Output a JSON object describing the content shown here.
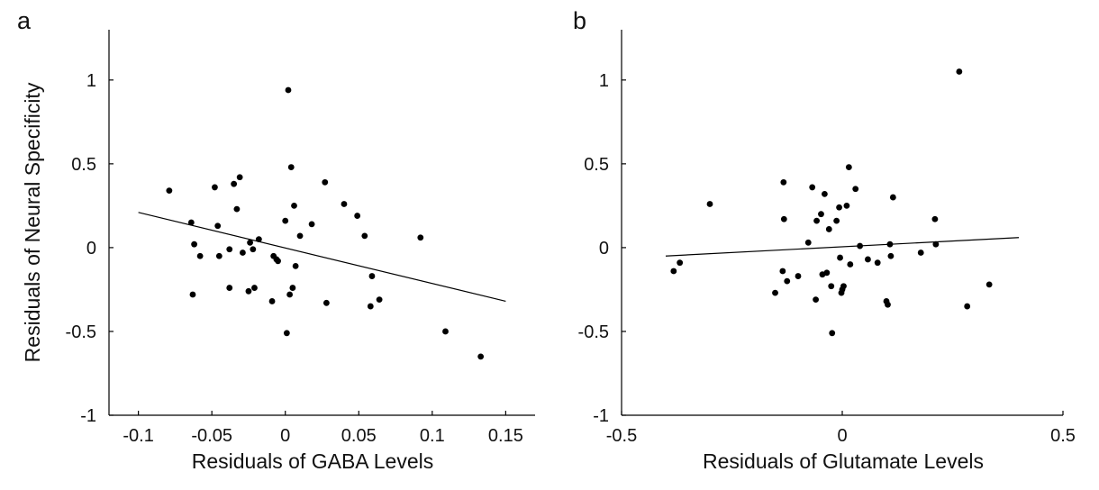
{
  "shared": {
    "ylabel": "Residuals of Neural Specificity",
    "point_color": "#000000",
    "line_color": "#000000"
  },
  "chart_data": [
    {
      "type": "scatter",
      "panel": "a",
      "xlabel": "Residuals of GABA Levels",
      "ylabel": "Residuals of Neural Specificity",
      "xlim": [
        -0.12,
        0.17
      ],
      "ylim": [
        -1,
        1.3
      ],
      "xticks": [
        -0.1,
        -0.05,
        0,
        0.05,
        0.1,
        0.15
      ],
      "xtick_labels": [
        "-0.1",
        "-0.05",
        "0",
        "0.05",
        "0.1",
        "0.15"
      ],
      "yticks": [
        -1,
        -0.5,
        0,
        0.5,
        1
      ],
      "ytick_labels": [
        "-1",
        "-0.5",
        "0",
        "0.5",
        "1"
      ],
      "fit_line": {
        "x": [
          -0.1,
          0.15
        ],
        "y": [
          0.21,
          -0.32
        ]
      },
      "points": [
        [
          -0.079,
          0.34
        ],
        [
          -0.064,
          0.15
        ],
        [
          -0.063,
          -0.28
        ],
        [
          -0.062,
          0.02
        ],
        [
          -0.058,
          -0.05
        ],
        [
          -0.048,
          0.36
        ],
        [
          -0.046,
          0.13
        ],
        [
          -0.045,
          -0.05
        ],
        [
          -0.038,
          -0.24
        ],
        [
          -0.038,
          -0.01
        ],
        [
          -0.035,
          0.38
        ],
        [
          -0.033,
          0.23
        ],
        [
          -0.031,
          0.42
        ],
        [
          -0.029,
          -0.03
        ],
        [
          -0.025,
          -0.26
        ],
        [
          -0.024,
          0.03
        ],
        [
          -0.022,
          -0.01
        ],
        [
          -0.021,
          -0.24
        ],
        [
          -0.018,
          0.05
        ],
        [
          -0.009,
          -0.32
        ],
        [
          -0.008,
          -0.05
        ],
        [
          -0.006,
          -0.07
        ],
        [
          -0.005,
          -0.08
        ],
        [
          0.0,
          0.16
        ],
        [
          0.001,
          -0.51
        ],
        [
          0.002,
          0.94
        ],
        [
          0.003,
          -0.28
        ],
        [
          0.004,
          0.48
        ],
        [
          0.005,
          -0.24
        ],
        [
          0.006,
          0.25
        ],
        [
          0.007,
          -0.11
        ],
        [
          0.01,
          0.07
        ],
        [
          0.018,
          0.14
        ],
        [
          0.027,
          0.39
        ],
        [
          0.028,
          -0.33
        ],
        [
          0.04,
          0.26
        ],
        [
          0.049,
          0.19
        ],
        [
          0.054,
          0.07
        ],
        [
          0.058,
          -0.35
        ],
        [
          0.059,
          -0.17
        ],
        [
          0.064,
          -0.31
        ],
        [
          0.092,
          0.06
        ],
        [
          0.109,
          -0.5
        ],
        [
          0.133,
          -0.65
        ]
      ]
    },
    {
      "type": "scatter",
      "panel": "b",
      "xlabel": "Residuals of Glutamate Levels",
      "ylabel": "",
      "xlim": [
        -0.5,
        0.5
      ],
      "ylim": [
        -1,
        1.3
      ],
      "xticks": [
        -0.5,
        0,
        0.5
      ],
      "xtick_labels": [
        "-0.5",
        "0",
        "0.5"
      ],
      "yticks": [
        -1,
        -0.5,
        0,
        0.5,
        1
      ],
      "ytick_labels": [
        "-1",
        "-0.5",
        "0",
        "0.5",
        "1"
      ],
      "fit_line": {
        "x": [
          -0.4,
          0.4
        ],
        "y": [
          -0.05,
          0.06
        ]
      },
      "points": [
        [
          -0.382,
          -0.14
        ],
        [
          -0.368,
          -0.09
        ],
        [
          -0.3,
          0.26
        ],
        [
          -0.152,
          -0.27
        ],
        [
          -0.135,
          -0.14
        ],
        [
          -0.133,
          0.39
        ],
        [
          -0.132,
          0.17
        ],
        [
          -0.125,
          -0.2
        ],
        [
          -0.1,
          -0.17
        ],
        [
          -0.077,
          0.03
        ],
        [
          -0.068,
          0.36
        ],
        [
          -0.06,
          -0.31
        ],
        [
          -0.058,
          0.16
        ],
        [
          -0.048,
          0.2
        ],
        [
          -0.045,
          -0.16
        ],
        [
          -0.04,
          0.32
        ],
        [
          -0.035,
          -0.15
        ],
        [
          -0.03,
          0.11
        ],
        [
          -0.025,
          -0.23
        ],
        [
          -0.023,
          -0.51
        ],
        [
          -0.013,
          0.16
        ],
        [
          -0.007,
          0.24
        ],
        [
          -0.005,
          -0.06
        ],
        [
          -0.002,
          -0.27
        ],
        [
          0.0,
          -0.25
        ],
        [
          0.003,
          -0.23
        ],
        [
          0.01,
          0.25
        ],
        [
          0.015,
          0.48
        ],
        [
          0.018,
          -0.1
        ],
        [
          0.03,
          0.35
        ],
        [
          0.04,
          0.01
        ],
        [
          0.058,
          -0.07
        ],
        [
          0.08,
          -0.09
        ],
        [
          0.1,
          -0.32
        ],
        [
          0.103,
          -0.34
        ],
        [
          0.108,
          0.02
        ],
        [
          0.11,
          -0.05
        ],
        [
          0.115,
          0.3
        ],
        [
          0.178,
          -0.03
        ],
        [
          0.21,
          0.17
        ],
        [
          0.212,
          0.02
        ],
        [
          0.265,
          1.05
        ],
        [
          0.283,
          -0.35
        ],
        [
          0.333,
          -0.22
        ]
      ]
    }
  ]
}
